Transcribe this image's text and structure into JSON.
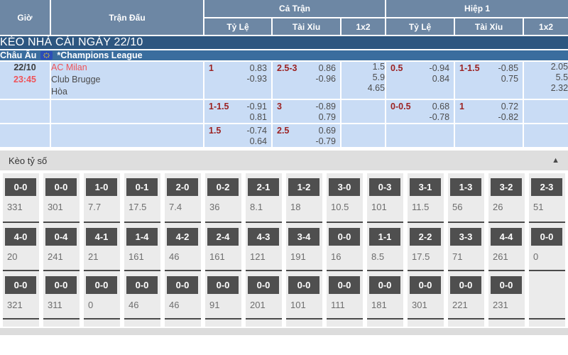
{
  "odds_table": {
    "header": {
      "time": "Giờ",
      "match": "Trận Đấu",
      "groups": [
        {
          "label": "Cả Trận",
          "subs": [
            "Tỷ Lệ",
            "Tài Xỉu",
            "1x2"
          ]
        },
        {
          "label": "Hiệp 1",
          "subs": [
            "Tỷ Lệ",
            "Tài Xỉu",
            "1x2"
          ]
        }
      ]
    },
    "banner": "KÈO NHÀ CÁI NGÀY 22/10",
    "league": {
      "region": "Châu Âu",
      "flag_icon": "eu-flag",
      "name": "*Champions League"
    },
    "rows": [
      {
        "time": [
          "22/10",
          "23:45"
        ],
        "teams": [
          "AC Milan",
          "Club Brugge",
          "Hòa"
        ],
        "ft_handicap": {
          "line": "1",
          "odds": [
            "0.83",
            "-0.93"
          ]
        },
        "ft_ou": {
          "line": "2.5-3",
          "odds": [
            "0.86",
            "-0.96"
          ]
        },
        "ft_1x2": [
          "1.5",
          "5.9",
          "4.65"
        ],
        "h1_handicap": {
          "line": "0.5",
          "odds": [
            "-0.94",
            "0.84"
          ]
        },
        "h1_ou": {
          "line": "1-1.5",
          "odds": [
            "-0.85",
            "0.75"
          ]
        },
        "h1_1x2": [
          "2.05",
          "5.5",
          "2.32"
        ]
      },
      {
        "time": [],
        "teams": [],
        "ft_handicap": {
          "line": "1-1.5",
          "odds": [
            "-0.91",
            "0.81"
          ]
        },
        "ft_ou": {
          "line": "3",
          "odds": [
            "-0.89",
            "0.79"
          ]
        },
        "ft_1x2": [],
        "h1_handicap": {
          "line": "0-0.5",
          "odds": [
            "0.68",
            "-0.78"
          ]
        },
        "h1_ou": {
          "line": "1",
          "odds": [
            "0.72",
            "-0.82"
          ]
        },
        "h1_1x2": []
      },
      {
        "time": [],
        "teams": [],
        "ft_handicap": {
          "line": "1.5",
          "odds": [
            "-0.74",
            "0.64"
          ]
        },
        "ft_ou": {
          "line": "2.5",
          "odds": [
            "0.69",
            "-0.79"
          ]
        },
        "ft_1x2": [],
        "h1_handicap": null,
        "h1_ou": null,
        "h1_1x2": []
      }
    ]
  },
  "score_section": {
    "title": "Kèo tỷ số",
    "collapse_icon": "triangle-up",
    "rows": [
      [
        {
          "score": "0-0",
          "odds": "331"
        },
        {
          "score": "0-0",
          "odds": "301"
        },
        {
          "score": "1-0",
          "odds": "7.7"
        },
        {
          "score": "0-1",
          "odds": "17.5"
        },
        {
          "score": "2-0",
          "odds": "7.4"
        },
        {
          "score": "0-2",
          "odds": "36"
        },
        {
          "score": "2-1",
          "odds": "8.1"
        },
        {
          "score": "1-2",
          "odds": "18"
        },
        {
          "score": "3-0",
          "odds": "10.5"
        },
        {
          "score": "0-3",
          "odds": "101"
        },
        {
          "score": "3-1",
          "odds": "11.5"
        },
        {
          "score": "1-3",
          "odds": "56"
        },
        {
          "score": "3-2",
          "odds": "26"
        },
        {
          "score": "2-3",
          "odds": "51"
        }
      ],
      [
        {
          "score": "4-0",
          "odds": "20"
        },
        {
          "score": "0-4",
          "odds": "241"
        },
        {
          "score": "4-1",
          "odds": "21"
        },
        {
          "score": "1-4",
          "odds": "161"
        },
        {
          "score": "4-2",
          "odds": "46"
        },
        {
          "score": "2-4",
          "odds": "161"
        },
        {
          "score": "4-3",
          "odds": "121"
        },
        {
          "score": "3-4",
          "odds": "191"
        },
        {
          "score": "0-0",
          "odds": "16"
        },
        {
          "score": "1-1",
          "odds": "8.5"
        },
        {
          "score": "2-2",
          "odds": "17.5"
        },
        {
          "score": "3-3",
          "odds": "71"
        },
        {
          "score": "4-4",
          "odds": "261"
        },
        {
          "score": "0-0",
          "odds": "0"
        }
      ],
      [
        {
          "score": "0-0",
          "odds": "321"
        },
        {
          "score": "0-0",
          "odds": "311"
        },
        {
          "score": "0-0",
          "odds": "0"
        },
        {
          "score": "0-0",
          "odds": "46"
        },
        {
          "score": "0-0",
          "odds": "46"
        },
        {
          "score": "0-0",
          "odds": "91"
        },
        {
          "score": "0-0",
          "odds": "201"
        },
        {
          "score": "0-0",
          "odds": "101"
        },
        {
          "score": "0-0",
          "odds": "111"
        },
        {
          "score": "0-0",
          "odds": "181"
        },
        {
          "score": "0-0",
          "odds": "301"
        },
        {
          "score": "0-0",
          "odds": "221"
        },
        {
          "score": "0-0",
          "odds": "231"
        },
        null
      ]
    ]
  },
  "colors": {
    "header_bg": "#6d87a4",
    "banner_bg": "#2d5680",
    "league_bg": "#3a6d9e",
    "row_bg": "#c9dcf5",
    "handicap": "#9c2222",
    "odds_text": "#4d4d4d",
    "accent_red": "#ef5359",
    "score_box_bg": "#4f4f4f",
    "strip_bg": "#ebebeb",
    "section_header_bg": "#dedede"
  }
}
